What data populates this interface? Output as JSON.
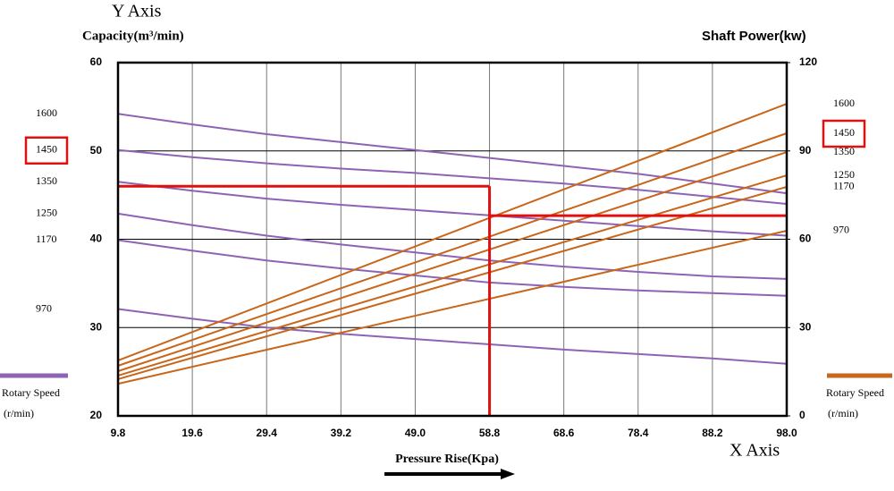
{
  "chart_data": {
    "type": "line",
    "title": "Y Axis",
    "y_label": "Capacity(m³/min)",
    "y2_label": "Shaft Power(kw)",
    "x_title": "X Axis",
    "x_label": "Pressure Rise(Kpa)",
    "x": [
      9.8,
      19.6,
      29.4,
      39.2,
      {
        "value": 49,
        "label": "49.0"
      },
      58.8,
      68.6,
      78.4,
      88.2,
      {
        "value": 98,
        "label": "98.0"
      }
    ],
    "xlim": [
      9.8,
      98
    ],
    "xticks": [
      9.8,
      19.6,
      29.4,
      39.2,
      {
        "value": 49,
        "label": "49.0"
      },
      58.8,
      68.6,
      78.4,
      88.2,
      {
        "value": 98,
        "label": "98.0"
      }
    ],
    "ylim": [
      20,
      60
    ],
    "yticks": [
      20,
      30,
      40,
      50,
      60
    ],
    "y2lim": [
      0,
      120
    ],
    "y2ticks": [
      0,
      30,
      60,
      90,
      120
    ],
    "grid": true,
    "series": [
      {
        "name": "1600",
        "color": "#8e63b5",
        "values": [
          54.2,
          53.0,
          51.9,
          51.0,
          50.1,
          49.2,
          48.3,
          47.4,
          46.3,
          45.2
        ]
      },
      {
        "name": "1450",
        "color": "#8e63b5",
        "values": [
          50.1,
          49.3,
          48.6,
          48.0,
          47.5,
          46.9,
          46.3,
          45.6,
          44.8,
          44.0
        ]
      },
      {
        "name": "1350",
        "color": "#8e63b5",
        "values": [
          46.5,
          45.5,
          44.6,
          43.9,
          43.3,
          42.7,
          42.1,
          41.5,
          40.9,
          40.4
        ]
      },
      {
        "name": "1250",
        "color": "#8e63b5",
        "values": [
          42.9,
          41.6,
          40.4,
          39.4,
          38.5,
          37.6,
          36.9,
          36.3,
          35.8,
          35.5
        ]
      },
      {
        "name": "1170",
        "color": "#8e63b5",
        "values": [
          39.9,
          38.7,
          37.6,
          36.7,
          35.9,
          35.1,
          34.6,
          34.2,
          33.9,
          33.6
        ]
      },
      {
        "name": "970",
        "color": "#8e63b5",
        "values": [
          32.1,
          31.0,
          30.0,
          29.3,
          28.7,
          28.1,
          27.5,
          27.0,
          26.5,
          25.9
        ]
      },
      {
        "name": "1600",
        "color": "#c8661a",
        "axis": "y2",
        "x": [
          9.8,
          98
        ],
        "values": [
          18.8,
          106.0
        ]
      },
      {
        "name": "1450",
        "color": "#c8661a",
        "axis": "y2",
        "x": [
          9.8,
          98
        ],
        "values": [
          17.0,
          96.0
        ]
      },
      {
        "name": "1350",
        "color": "#c8661a",
        "axis": "y2",
        "x": [
          9.8,
          98
        ],
        "values": [
          15.2,
          89.6
        ]
      },
      {
        "name": "1250",
        "color": "#c8661a",
        "axis": "y2",
        "x": [
          9.8,
          98
        ],
        "values": [
          13.7,
          81.7
        ]
      },
      {
        "name": "1170",
        "color": "#c8661a",
        "axis": "y2",
        "x": [
          9.8,
          98
        ],
        "values": [
          12.5,
          77.8
        ]
      },
      {
        "name": "970",
        "color": "#c8661a",
        "axis": "y2",
        "x": [
          9.8,
          98
        ],
        "values": [
          10.9,
          62.9
        ]
      }
    ],
    "legend": {
      "left": {
        "label": "Rotary Speed",
        "unit": "(r/min)",
        "color": "#8e63b5"
      },
      "right": {
        "label": "Rotary Speed",
        "unit": "(r/min)",
        "color": "#c8661a"
      }
    },
    "annotations": {
      "pressure": 58.8,
      "capacity": 46,
      "power": 68,
      "color": "#e01010"
    }
  }
}
